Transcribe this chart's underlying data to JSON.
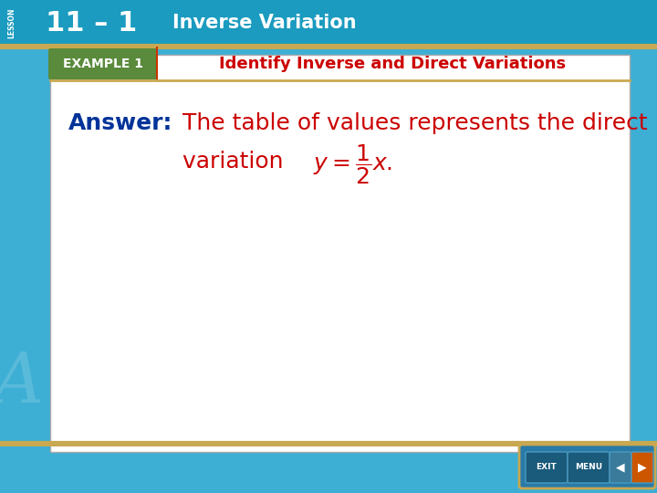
{
  "header_bg_color": "#1a9bbf",
  "header_text": "11 – 1",
  "header_subtitle": "Inverse Variation",
  "lesson_label": "LESSON",
  "example_bg_color": "#5a8a3c",
  "example_label": "EXAMPLE 1",
  "example_title": "Identify Inverse and Direct Variations",
  "example_title_color": "#cc0000",
  "answer_label": "Answer:",
  "answer_label_color": "#003399",
  "answer_text_line1": "The table of values represents the direct",
  "answer_text_line2": "variation ",
  "answer_text_color": "#cc0000",
  "main_bg_color": "#ffffff",
  "outer_bg_color": "#3daed4",
  "border_color": "#c8a850",
  "content_area_bg": "#ffffff",
  "figsize": [
    7.2,
    5.4
  ],
  "dpi": 100
}
